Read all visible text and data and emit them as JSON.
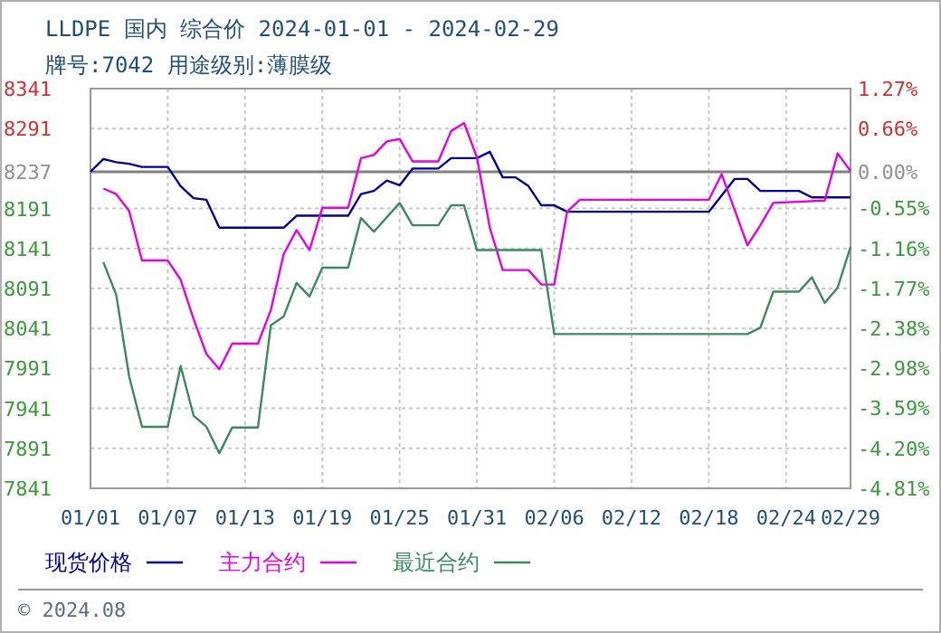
{
  "chart_data": {
    "type": "line",
    "title": "LLDPE 国内 综合价 2024-01-01 - 2024-02-29",
    "subtitle": "牌号:7042 用途级别:薄膜级",
    "annotations": [
      "© 2024.08"
    ],
    "xlim": [
      "2024-01-01",
      "2024-02-29"
    ],
    "xticks": [
      {
        "value": "2024-01-01",
        "label": "01/01"
      },
      {
        "value": "2024-01-07",
        "label": "01/07"
      },
      {
        "value": "2024-01-13",
        "label": "01/13"
      },
      {
        "value": "2024-01-19",
        "label": "01/19"
      },
      {
        "value": "2024-01-25",
        "label": "01/25"
      },
      {
        "value": "2024-01-31",
        "label": "01/31"
      },
      {
        "value": "2024-02-06",
        "label": "02/06"
      },
      {
        "value": "2024-02-12",
        "label": "02/12"
      },
      {
        "value": "2024-02-18",
        "label": "02/18"
      },
      {
        "value": "2024-02-24",
        "label": "02/24"
      },
      {
        "value": "2024-02-29",
        "label": "02/29"
      }
    ],
    "ylim": [
      7841,
      8341
    ],
    "yticks": [
      7841,
      7891,
      7941,
      7991,
      8041,
      8091,
      8141,
      8191,
      8237,
      8291,
      8341
    ],
    "y2lim": [
      -4.81,
      1.27
    ],
    "y2ticks": [
      {
        "value": -4.81,
        "label": "-4.81%"
      },
      {
        "value": -4.2,
        "label": "-4.20%"
      },
      {
        "value": -3.59,
        "label": "-3.59%"
      },
      {
        "value": -2.98,
        "label": "-2.98%"
      },
      {
        "value": -2.38,
        "label": "-2.38%"
      },
      {
        "value": -1.77,
        "label": "-1.77%"
      },
      {
        "value": -1.16,
        "label": "-1.16%"
      },
      {
        "value": -0.55,
        "label": "-0.55%"
      },
      {
        "value": 0,
        "label": "0.00%"
      },
      {
        "value": 0.66,
        "label": "0.66%"
      },
      {
        "value": 1.27,
        "label": "1.27%"
      }
    ],
    "ref_lines": [
      {
        "axis": "y",
        "value": 8237,
        "color": "#808080"
      }
    ],
    "grid": true,
    "legend": "bottom left",
    "line_style": "solid",
    "marker": "none",
    "series": [
      {
        "name": "现货价格",
        "color": "#000099",
        "x": [
          "2024-01-01",
          "2024-01-02",
          "2024-01-03",
          "2024-01-04",
          "2024-01-05",
          "2024-01-07",
          "2024-01-08",
          "2024-01-09",
          "2024-01-10",
          "2024-01-11",
          "2024-01-16",
          "2024-01-17",
          "2024-01-21",
          "2024-01-22",
          "2024-01-23",
          "2024-01-24",
          "2024-01-25",
          "2024-01-26",
          "2024-01-28",
          "2024-01-29",
          "2024-01-31",
          "2024-02-01",
          "2024-02-02",
          "2024-02-03",
          "2024-02-04",
          "2024-02-05",
          "2024-02-06",
          "2024-02-07",
          "2024-02-18",
          "2024-02-20",
          "2024-02-21",
          "2024-02-22",
          "2024-02-25",
          "2024-02-26",
          "2024-02-29"
        ],
        "values": [
          8237,
          8253,
          8249,
          8247,
          8243,
          8243,
          8219,
          8204,
          8202,
          8167,
          8167,
          8182,
          8182,
          8209,
          8213,
          8226,
          8220,
          8241,
          8241,
          8254,
          8254,
          8262,
          8230,
          8230,
          8219,
          8195,
          8195,
          8187,
          8187,
          8228,
          8228,
          8213,
          8213,
          8205,
          8205
        ]
      },
      {
        "name": "主力合约",
        "color": "#e600e6",
        "x": [
          "2024-01-02",
          "2024-01-03",
          "2024-01-04",
          "2024-01-05",
          "2024-01-07",
          "2024-01-08",
          "2024-01-09",
          "2024-01-10",
          "2024-01-11",
          "2024-01-12",
          "2024-01-14",
          "2024-01-15",
          "2024-01-16",
          "2024-01-17",
          "2024-01-18",
          "2024-01-19",
          "2024-01-21",
          "2024-01-22",
          "2024-01-23",
          "2024-01-24",
          "2024-01-25",
          "2024-01-26",
          "2024-01-28",
          "2024-01-29",
          "2024-01-30",
          "2024-01-31",
          "2024-02-01",
          "2024-02-02",
          "2024-02-04",
          "2024-02-05",
          "2024-02-06",
          "2024-02-07",
          "2024-02-08",
          "2024-02-18",
          "2024-02-19",
          "2024-02-21",
          "2024-02-22",
          "2024-02-23",
          "2024-02-27",
          "2024-02-28",
          "2024-02-29"
        ],
        "values": [
          8216,
          8209,
          8188,
          8126,
          8126,
          8102,
          8053,
          8009,
          7990,
          8022,
          8022,
          8064,
          8134,
          8164,
          8139,
          8192,
          8192,
          8254,
          8258,
          8275,
          8278,
          8250,
          8250,
          8288,
          8298,
          8255,
          8167,
          8114,
          8114,
          8096,
          8096,
          8187,
          8202,
          8202,
          8234,
          8145,
          8170,
          8198,
          8201,
          8260,
          8238
        ]
      },
      {
        "name": "最近合约",
        "color": "#3a8a5e",
        "x": [
          "2024-01-02",
          "2024-01-03",
          "2024-01-04",
          "2024-01-05",
          "2024-01-07",
          "2024-01-08",
          "2024-01-09",
          "2024-01-10",
          "2024-01-11",
          "2024-01-12",
          "2024-01-14",
          "2024-01-15",
          "2024-01-16",
          "2024-01-17",
          "2024-01-18",
          "2024-01-19",
          "2024-01-21",
          "2024-01-22",
          "2024-01-23",
          "2024-01-25",
          "2024-01-26",
          "2024-01-28",
          "2024-01-29",
          "2024-01-30",
          "2024-01-31",
          "2024-02-05",
          "2024-02-06",
          "2024-02-21",
          "2024-02-22",
          "2024-02-23",
          "2024-02-25",
          "2024-02-26",
          "2024-02-27",
          "2024-02-28",
          "2024-02-29"
        ],
        "values": [
          8124,
          8083,
          7981,
          7918,
          7918,
          7994,
          7932,
          7918,
          7885,
          7917,
          7917,
          8045,
          8056,
          8098,
          8081,
          8117,
          8117,
          8179,
          8162,
          8198,
          8170,
          8170,
          8195,
          8195,
          8139,
          8139,
          8034,
          8034,
          8042,
          8087,
          8087,
          8105,
          8073,
          8092,
          8143
        ]
      }
    ]
  }
}
